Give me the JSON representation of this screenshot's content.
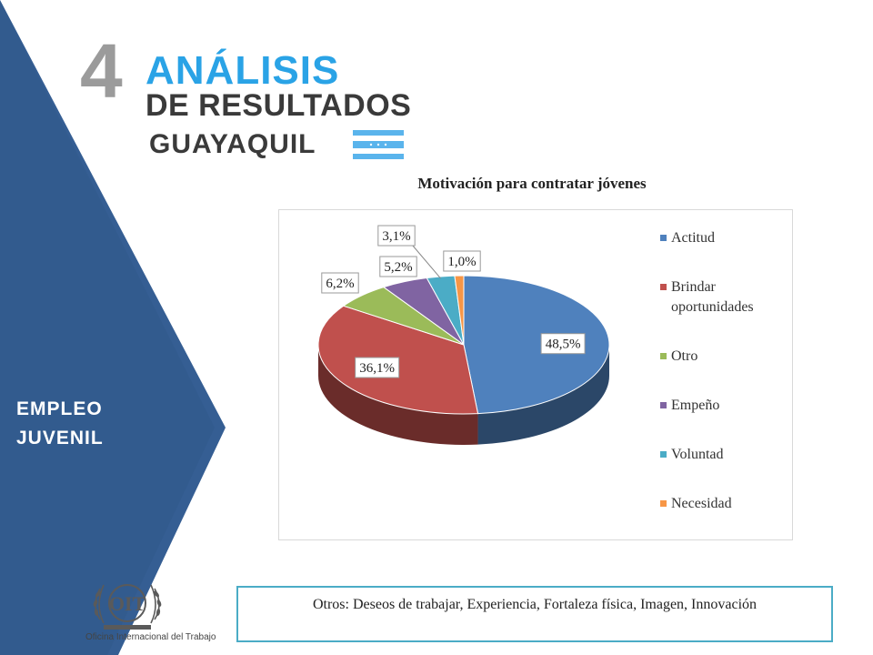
{
  "header": {
    "number": "4",
    "title_line1": "ANÁLISIS",
    "title_line2": "DE RESULTADOS",
    "title_line3": "GUAYAQUIL",
    "flag_icon": "guayaquil-flag-icon"
  },
  "sidebar": {
    "label_line1": "EMPLEO",
    "label_line2": "JUVENIL",
    "color": "#355e93"
  },
  "chart_data": {
    "type": "pie",
    "title": "Motivación para contratar jóvenes",
    "legend_position": "right",
    "slices": [
      {
        "name": "Actitud",
        "value": 48.5,
        "label": "48,5%",
        "color": "#4f81bd"
      },
      {
        "name": "Brindar oportunidades",
        "value": 36.1,
        "label": "36,1%",
        "color": "#c0504d"
      },
      {
        "name": "Otro",
        "value": 6.2,
        "label": "6,2%",
        "color": "#9bbb59"
      },
      {
        "name": "Empeño",
        "value": 5.2,
        "label": "5,2%",
        "color": "#8064a2"
      },
      {
        "name": "Voluntad",
        "value": 3.1,
        "label": "3,1%",
        "color": "#4bacc6"
      },
      {
        "name": "Necesidad",
        "value": 1.0,
        "label": "1,0%",
        "color": "#f79646"
      }
    ]
  },
  "note": {
    "text": "Otros: Deseos de trabajar, Experiencia, Fortaleza física, Imagen, Innovación"
  },
  "logo": {
    "icon": "oit-logo-icon",
    "caption": "Oficina Internacional del Trabajo"
  }
}
